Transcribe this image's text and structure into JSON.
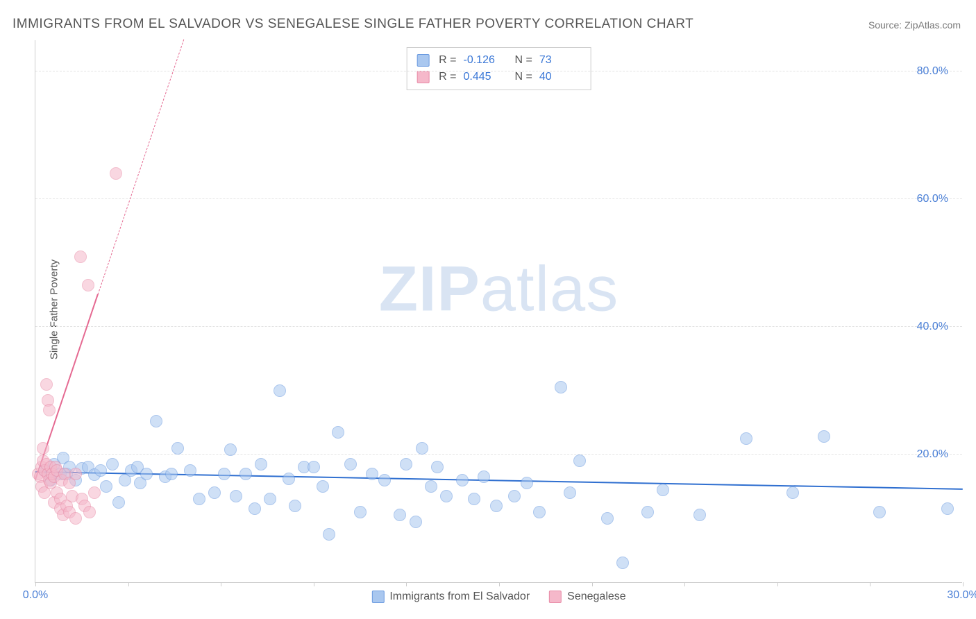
{
  "title": "IMMIGRANTS FROM EL SALVADOR VS SENEGALESE SINGLE FATHER POVERTY CORRELATION CHART",
  "source": "Source: ZipAtlas.com",
  "ylabel": "Single Father Poverty",
  "watermark_a": "ZIP",
  "watermark_b": "atlas",
  "chart": {
    "type": "scatter",
    "xlim": [
      0,
      30
    ],
    "ylim": [
      0,
      85
    ],
    "x_ticks": [
      0,
      3,
      6,
      9,
      12,
      15,
      18,
      21,
      24,
      27,
      30
    ],
    "x_tick_labels": {
      "0": "0.0%",
      "30": "30.0%"
    },
    "y_gridlines": [
      20,
      40,
      60,
      80
    ],
    "y_tick_labels": {
      "20": "20.0%",
      "40": "40.0%",
      "60": "60.0%",
      "80": "80.0%"
    },
    "grid_color": "#e3e3e3",
    "axis_color": "#cccccc",
    "background_color": "#ffffff",
    "label_color": "#4a7fd6",
    "title_color": "#555555",
    "title_fontsize": 19,
    "label_fontsize": 15,
    "tick_fontsize": 16,
    "point_radius": 9,
    "point_opacity": 0.55
  },
  "series": [
    {
      "id": "el_salvador",
      "label": "Immigrants from El Salvador",
      "fill": "#a9c7ef",
      "stroke": "#6a9ae0",
      "trend_color": "#2f6fd0",
      "R": "-0.126",
      "N": "73",
      "trend": {
        "x1": 0,
        "y1": 17.2,
        "x2": 30,
        "y2": 14.5
      },
      "points": [
        [
          0.3,
          17.5
        ],
        [
          0.5,
          16.0
        ],
        [
          0.6,
          18.5
        ],
        [
          0.8,
          17.0
        ],
        [
          0.9,
          19.5
        ],
        [
          1.0,
          17.0
        ],
        [
          1.1,
          18.0
        ],
        [
          1.3,
          16.0
        ],
        [
          1.5,
          17.8
        ],
        [
          1.7,
          18.0
        ],
        [
          1.9,
          16.8
        ],
        [
          2.1,
          17.5
        ],
        [
          2.3,
          15.0
        ],
        [
          2.5,
          18.5
        ],
        [
          2.7,
          12.5
        ],
        [
          2.9,
          16.0
        ],
        [
          3.1,
          17.5
        ],
        [
          3.3,
          18.0
        ],
        [
          3.4,
          15.5
        ],
        [
          3.6,
          17.0
        ],
        [
          3.9,
          25.2
        ],
        [
          4.2,
          16.5
        ],
        [
          4.4,
          17.0
        ],
        [
          4.6,
          21.0
        ],
        [
          5.0,
          17.5
        ],
        [
          5.3,
          13.0
        ],
        [
          5.8,
          14.0
        ],
        [
          6.1,
          17.0
        ],
        [
          6.3,
          20.8
        ],
        [
          6.5,
          13.5
        ],
        [
          6.8,
          17.0
        ],
        [
          7.1,
          11.5
        ],
        [
          7.3,
          18.5
        ],
        [
          7.6,
          13.0
        ],
        [
          7.9,
          30.0
        ],
        [
          8.2,
          16.2
        ],
        [
          8.4,
          12.0
        ],
        [
          8.7,
          18.0
        ],
        [
          9.0,
          18.0
        ],
        [
          9.3,
          15.0
        ],
        [
          9.5,
          7.5
        ],
        [
          9.8,
          23.5
        ],
        [
          10.2,
          18.5
        ],
        [
          10.5,
          11.0
        ],
        [
          10.9,
          17.0
        ],
        [
          11.3,
          16.0
        ],
        [
          11.8,
          10.5
        ],
        [
          12.0,
          18.5
        ],
        [
          12.3,
          9.5
        ],
        [
          12.5,
          21.0
        ],
        [
          12.8,
          15.0
        ],
        [
          13.0,
          18.0
        ],
        [
          13.3,
          13.5
        ],
        [
          13.8,
          16.0
        ],
        [
          14.2,
          13.0
        ],
        [
          14.5,
          16.5
        ],
        [
          14.9,
          12.0
        ],
        [
          15.5,
          13.5
        ],
        [
          15.9,
          15.5
        ],
        [
          16.3,
          11.0
        ],
        [
          17.0,
          30.5
        ],
        [
          17.3,
          14.0
        ],
        [
          17.6,
          19.0
        ],
        [
          18.5,
          10.0
        ],
        [
          19.0,
          3.0
        ],
        [
          19.8,
          11.0
        ],
        [
          20.3,
          14.5
        ],
        [
          21.5,
          10.5
        ],
        [
          23.0,
          22.5
        ],
        [
          24.5,
          14.0
        ],
        [
          25.5,
          22.8
        ],
        [
          27.3,
          11.0
        ],
        [
          29.5,
          11.5
        ]
      ]
    },
    {
      "id": "senegalese",
      "label": "Senegalese",
      "fill": "#f5b8ca",
      "stroke": "#e88aa6",
      "trend_color": "#e56a92",
      "R": "0.445",
      "N": "40",
      "trend": {
        "x1": 0,
        "y1": 16.0,
        "x2": 4.8,
        "y2": 85.0
      },
      "trend_dash_from_y": 45,
      "points": [
        [
          0.1,
          17.0
        ],
        [
          0.15,
          16.5
        ],
        [
          0.2,
          18.0
        ],
        [
          0.2,
          15.0
        ],
        [
          0.25,
          19.0
        ],
        [
          0.25,
          21.0
        ],
        [
          0.3,
          17.5
        ],
        [
          0.3,
          14.0
        ],
        [
          0.35,
          18.5
        ],
        [
          0.35,
          31.0
        ],
        [
          0.4,
          17.0
        ],
        [
          0.4,
          28.5
        ],
        [
          0.45,
          16.0
        ],
        [
          0.45,
          27.0
        ],
        [
          0.5,
          18.0
        ],
        [
          0.5,
          15.5
        ],
        [
          0.55,
          17.0
        ],
        [
          0.6,
          16.5
        ],
        [
          0.6,
          12.5
        ],
        [
          0.65,
          18.0
        ],
        [
          0.7,
          14.0
        ],
        [
          0.7,
          17.5
        ],
        [
          0.8,
          13.0
        ],
        [
          0.8,
          11.5
        ],
        [
          0.85,
          16.0
        ],
        [
          0.9,
          10.5
        ],
        [
          0.95,
          17.0
        ],
        [
          1.0,
          12.0
        ],
        [
          1.1,
          11.0
        ],
        [
          1.1,
          15.5
        ],
        [
          1.2,
          13.5
        ],
        [
          1.3,
          10.0
        ],
        [
          1.3,
          17.0
        ],
        [
          1.45,
          51.0
        ],
        [
          1.5,
          13.0
        ],
        [
          1.6,
          12.0
        ],
        [
          1.7,
          46.5
        ],
        [
          1.75,
          11.0
        ],
        [
          1.9,
          14.0
        ],
        [
          2.6,
          64.0
        ]
      ]
    }
  ],
  "legend_top": {
    "r_label": "R =",
    "n_label": "N ="
  }
}
